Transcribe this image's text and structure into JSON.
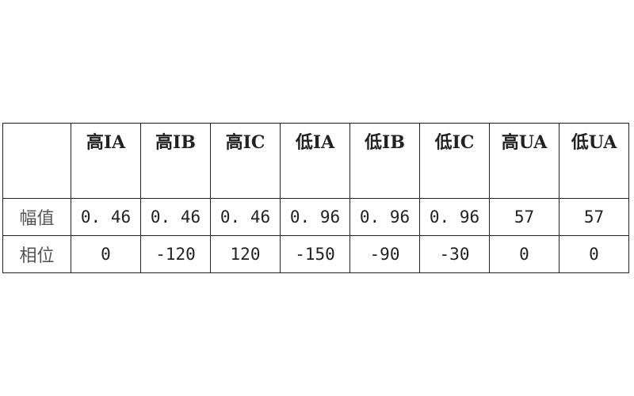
{
  "table": {
    "headers": [
      "",
      "高IA",
      "高IB",
      "高IC",
      "低IA",
      "低IB",
      "低IC",
      "高UA",
      "低UA"
    ],
    "rows": [
      {
        "label": "幅值",
        "values": [
          "0. 46",
          "0. 46",
          "0. 46",
          "0. 96",
          "0. 96",
          "0. 96",
          "57",
          "57"
        ]
      },
      {
        "label": "相位",
        "values": [
          "0",
          "-120",
          "120",
          "-150",
          "-90",
          "-30",
          "0",
          "0"
        ]
      }
    ]
  }
}
